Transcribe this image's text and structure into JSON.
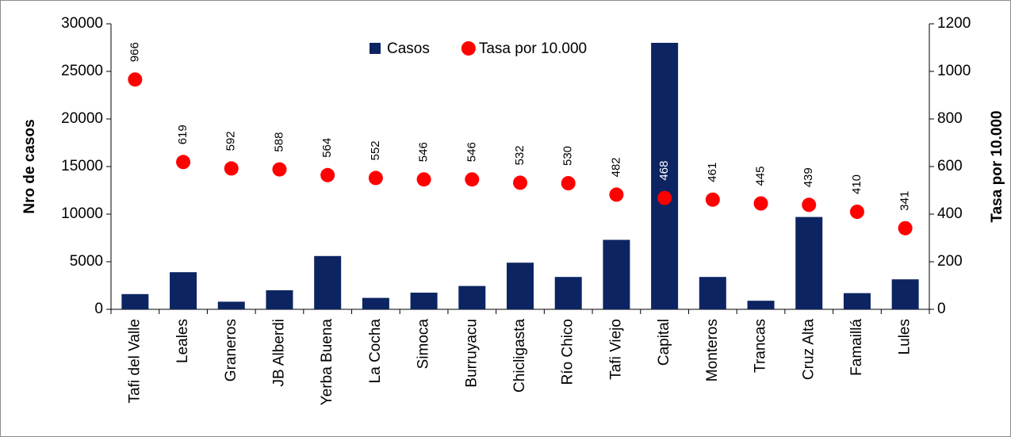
{
  "chart_data": {
    "type": "bar_scatter",
    "y_label": "Nro de casos",
    "y2_label": "Tasa por 10.000",
    "categories": [
      "Tafi del Valle",
      "Leales",
      "Graneros",
      "JB Alberdi",
      "Yerba Buena",
      "La Cocha",
      "Simoca",
      "Burruyacu",
      "Chicligasta",
      "Río Chico",
      "Tafi Viejo",
      "Capital",
      "Monteros",
      "Trancas",
      "Cruz Alta",
      "Famaillá",
      "Lules"
    ],
    "series": [
      {
        "name": "Casos",
        "type": "bar",
        "color": "#0c2461",
        "values": [
          1600,
          3900,
          800,
          2000,
          5600,
          1200,
          1750,
          2450,
          4900,
          3400,
          7300,
          28000,
          3400,
          900,
          9700,
          1700,
          3150
        ]
      },
      {
        "name": "Tasa por 10.000",
        "type": "scatter",
        "axis": "y2",
        "color": "#ff0000",
        "values": [
          966,
          619,
          592,
          588,
          564,
          552,
          546,
          546,
          532,
          530,
          482,
          468,
          461,
          445,
          439,
          410,
          341
        ]
      }
    ],
    "ylim": [
      0,
      30000
    ],
    "yticks": [
      0,
      5000,
      10000,
      15000,
      20000,
      25000,
      30000
    ],
    "y2lim": [
      0,
      1200
    ],
    "y2ticks": [
      0,
      200,
      400,
      600,
      800,
      1000,
      1200
    ],
    "grid": false,
    "legend": "top"
  }
}
